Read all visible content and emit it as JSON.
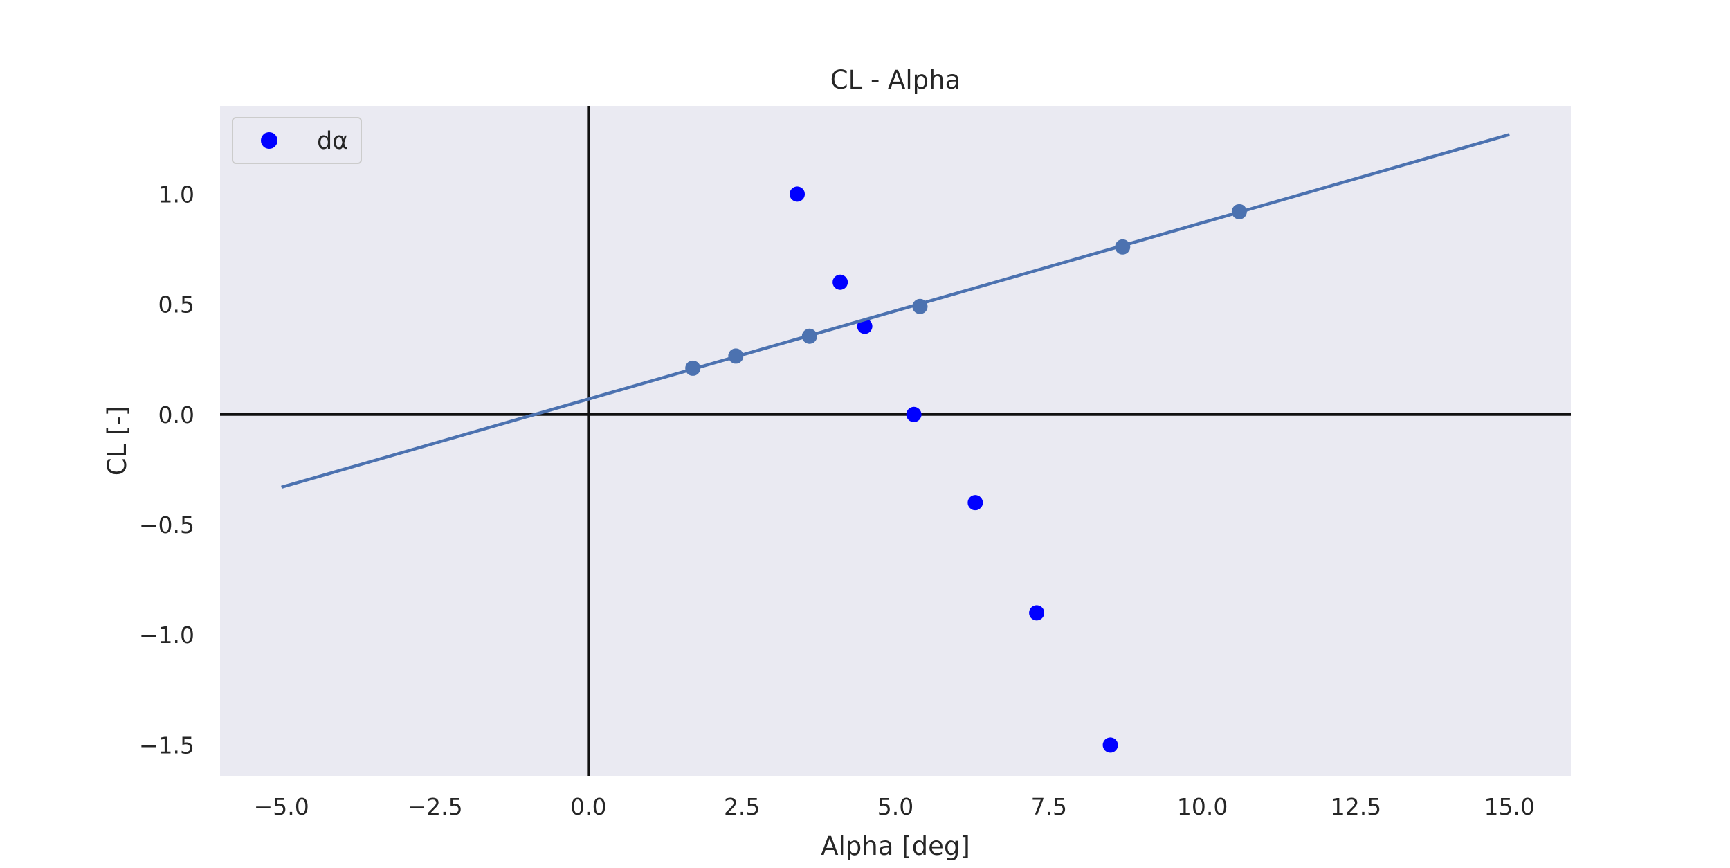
{
  "chart_data": {
    "type": "scatter",
    "title": "CL - Alpha",
    "xlabel": "Alpha [deg]",
    "ylabel": "CL [-]",
    "xlim": [
      -6.0,
      16.0
    ],
    "ylim": [
      -1.64,
      1.4
    ],
    "xticks": [
      -5.0,
      -2.5,
      0.0,
      2.5,
      5.0,
      7.5,
      10.0,
      12.5,
      15.0
    ],
    "xtick_labels": [
      "−5.0",
      "−2.5",
      "0.0",
      "2.5",
      "5.0",
      "7.5",
      "10.0",
      "12.5",
      "15.0"
    ],
    "yticks": [
      1.0,
      0.5,
      0.0,
      -0.5,
      -1.0,
      -1.5
    ],
    "ytick_labels": [
      "1.0",
      "0.5",
      "0.0",
      "−0.5",
      "−1.0",
      "−1.5"
    ],
    "grid": false,
    "background": "#eaeaf2",
    "legend": {
      "position": "top-left",
      "entries": [
        {
          "label": "dα",
          "color": "#0000ff",
          "marker": "circle"
        }
      ]
    },
    "reference_lines": {
      "x": 0.0,
      "y": 0.0,
      "color": "#111111"
    },
    "series": [
      {
        "name": "dα",
        "kind": "scatter",
        "color": "#0000ff",
        "points": [
          {
            "x": 3.4,
            "y": 1.0
          },
          {
            "x": 4.1,
            "y": 0.6
          },
          {
            "x": 4.5,
            "y": 0.4
          },
          {
            "x": 5.3,
            "y": 0.0
          },
          {
            "x": 6.3,
            "y": -0.4
          },
          {
            "x": 7.3,
            "y": -0.9
          },
          {
            "x": 8.5,
            "y": -1.5
          }
        ]
      },
      {
        "kind": "line-with-markers",
        "color": "#4c72b0",
        "line": [
          {
            "x": -5.0,
            "y": -0.33
          },
          {
            "x": 15.0,
            "y": 1.27
          }
        ],
        "points": [
          {
            "x": 1.7,
            "y": 0.21
          },
          {
            "x": 2.4,
            "y": 0.265
          },
          {
            "x": 3.6,
            "y": 0.355
          },
          {
            "x": 5.4,
            "y": 0.49
          },
          {
            "x": 8.7,
            "y": 0.76
          },
          {
            "x": 10.6,
            "y": 0.92
          }
        ]
      }
    ]
  }
}
